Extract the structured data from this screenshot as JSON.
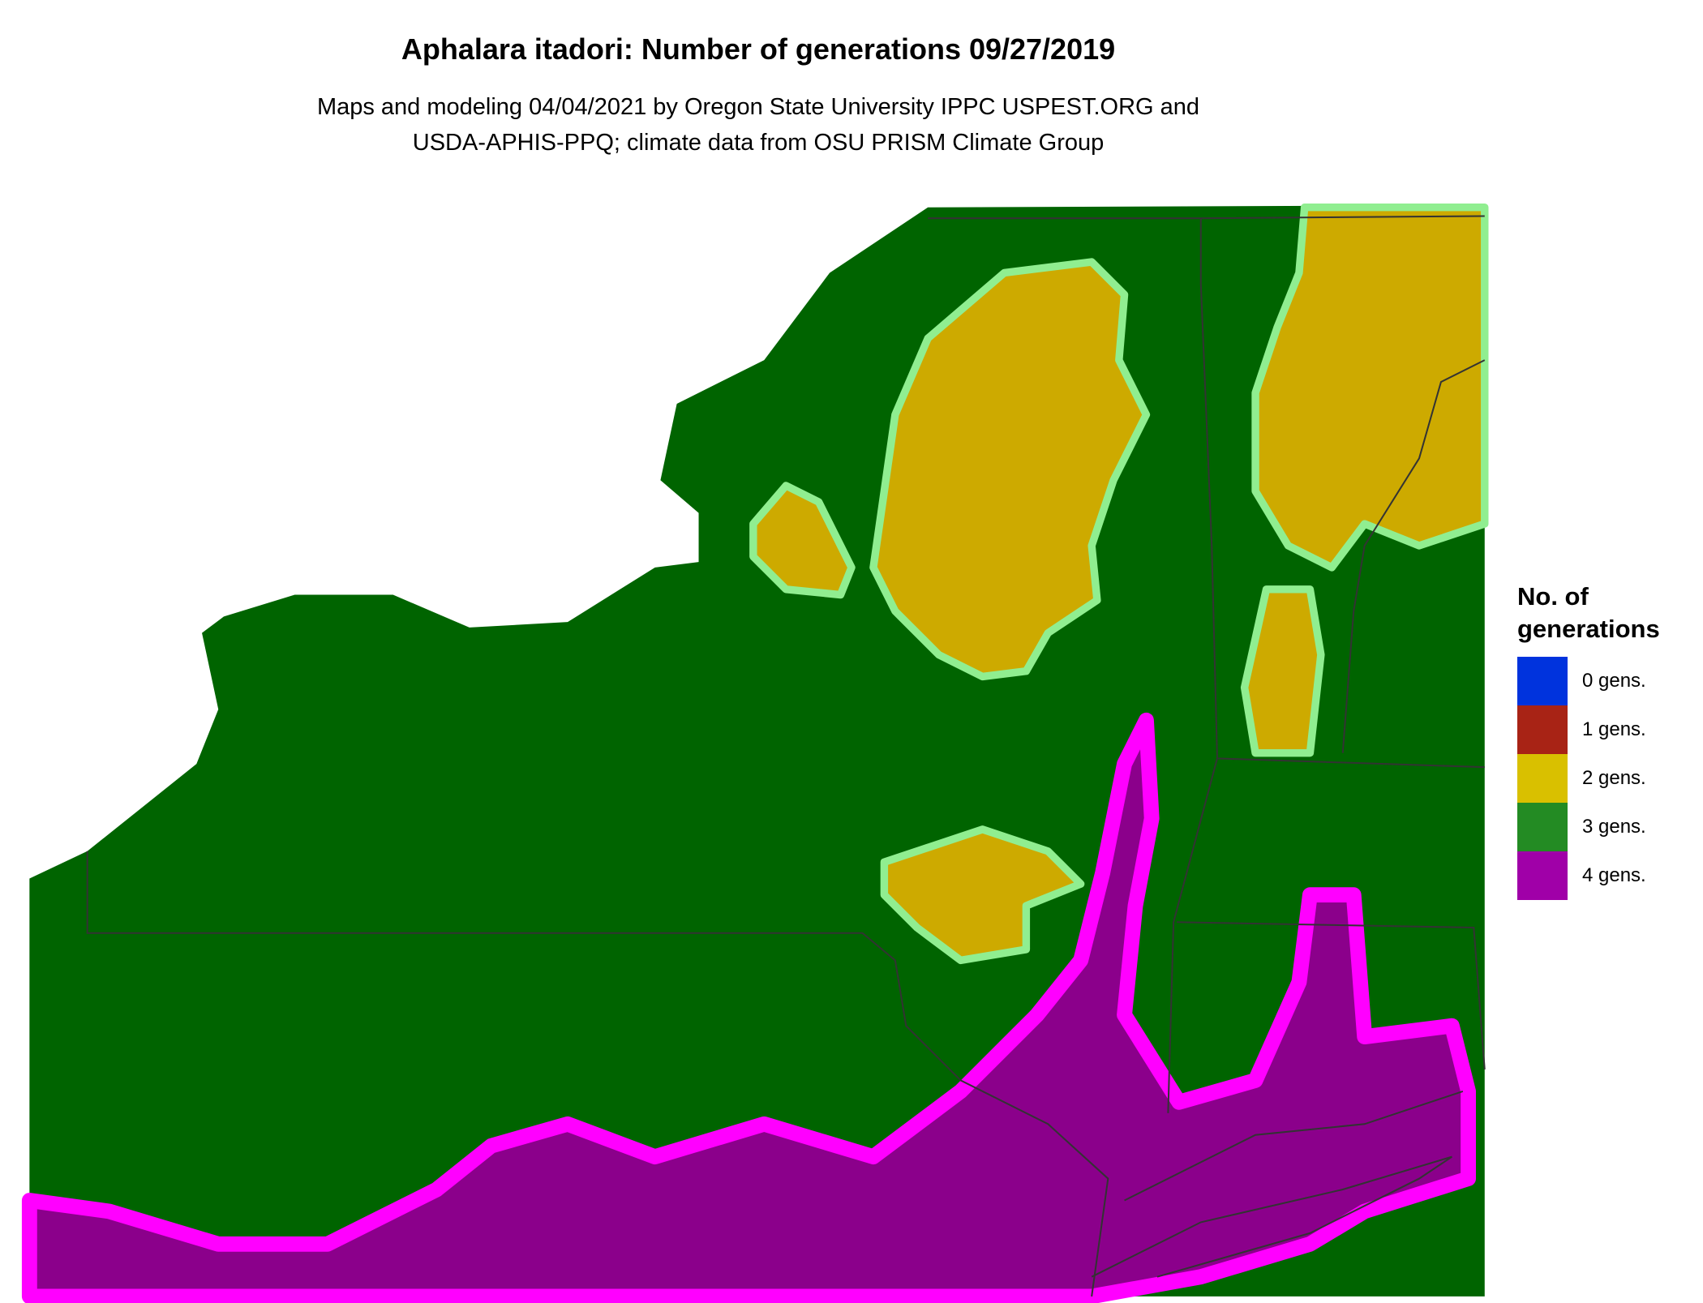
{
  "title": "Aphalara itadori: Number of generations 09/27/2019",
  "subtitle_lines": [
    "Maps and modeling 04/04/2021 by Oregon State University IPPC USPEST.ORG and",
    "USDA-APHIS-PPQ; climate data from OSU PRISM Climate Group"
  ],
  "legend": {
    "title_lines": [
      "No. of",
      "generations"
    ],
    "items": [
      {
        "label": "0 gens.",
        "color": "#0033DD"
      },
      {
        "label": "1 gens.",
        "color": "#A82315"
      },
      {
        "label": "2 gens.",
        "color": "#D9C000"
      },
      {
        "label": "3 gens.",
        "color": "#238B23"
      },
      {
        "label": "4 gens.",
        "color": "#A000A8"
      }
    ]
  },
  "map_colors": {
    "three_gens": "#006400",
    "three_gens_edge": "#90EE90",
    "two_gens": "#CDAA00",
    "four_gens": "#8B008B",
    "four_gens_edge": "#FF00FF",
    "state_border": "#333333"
  }
}
